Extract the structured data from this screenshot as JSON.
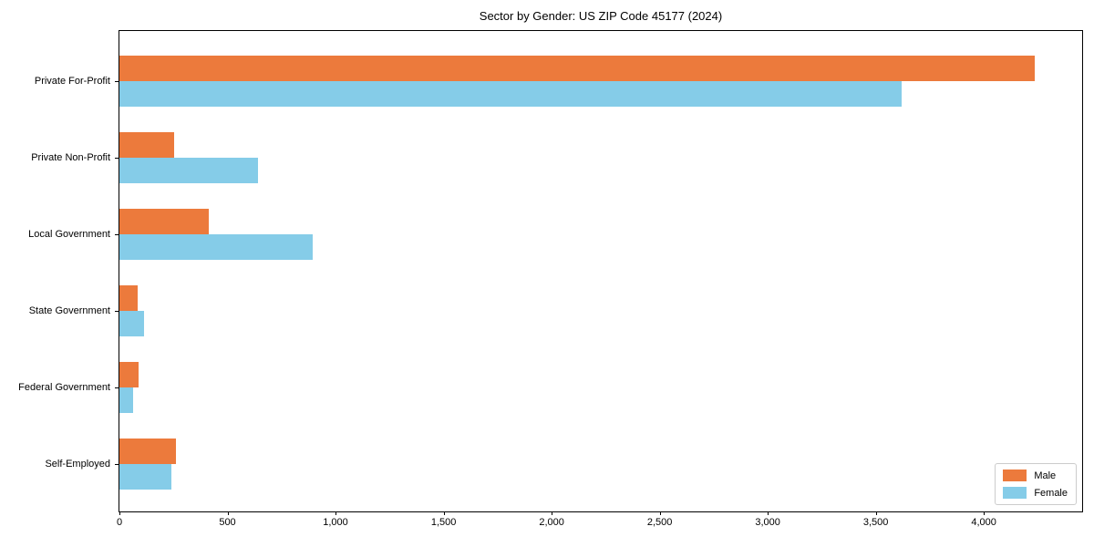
{
  "title": "Sector by Gender: US ZIP Code 45177 (2024)",
  "colors": {
    "male": "#EC7A3C",
    "female": "#85CCE8",
    "spine": "#000000",
    "legend_border": "#cccccc",
    "background": "#ffffff",
    "text": "#000000"
  },
  "legend": {
    "position": "lower right",
    "items": [
      {
        "label": "Male"
      },
      {
        "label": "Female"
      }
    ]
  },
  "chart_data": {
    "type": "bar",
    "orientation": "horizontal",
    "title": "Sector by Gender: US ZIP Code 45177 (2024)",
    "xlabel": "",
    "ylabel": "",
    "categories": [
      "Private For-Profit",
      "Private Non-Profit",
      "Local Government",
      "State Government",
      "Federal Government",
      "Self-Employed"
    ],
    "series": [
      {
        "name": "Male",
        "color": "#EC7A3C",
        "values": [
          4235,
          255,
          415,
          85,
          90,
          260
        ]
      },
      {
        "name": "Female",
        "color": "#85CCE8",
        "values": [
          3620,
          640,
          895,
          115,
          65,
          240
        ]
      }
    ],
    "xlim": [
      0,
      4455
    ],
    "x_ticks": [
      {
        "value": 0,
        "label": "0"
      },
      {
        "value": 500,
        "label": "500"
      },
      {
        "value": 1000,
        "label": "1,000"
      },
      {
        "value": 1500,
        "label": "1,500"
      },
      {
        "value": 2000,
        "label": "2,000"
      },
      {
        "value": 2500,
        "label": "2,500"
      },
      {
        "value": 3000,
        "label": "3,000"
      },
      {
        "value": 3500,
        "label": "3,500"
      },
      {
        "value": 4000,
        "label": "4,000"
      }
    ],
    "grid": false,
    "legend_position": "lower right"
  }
}
